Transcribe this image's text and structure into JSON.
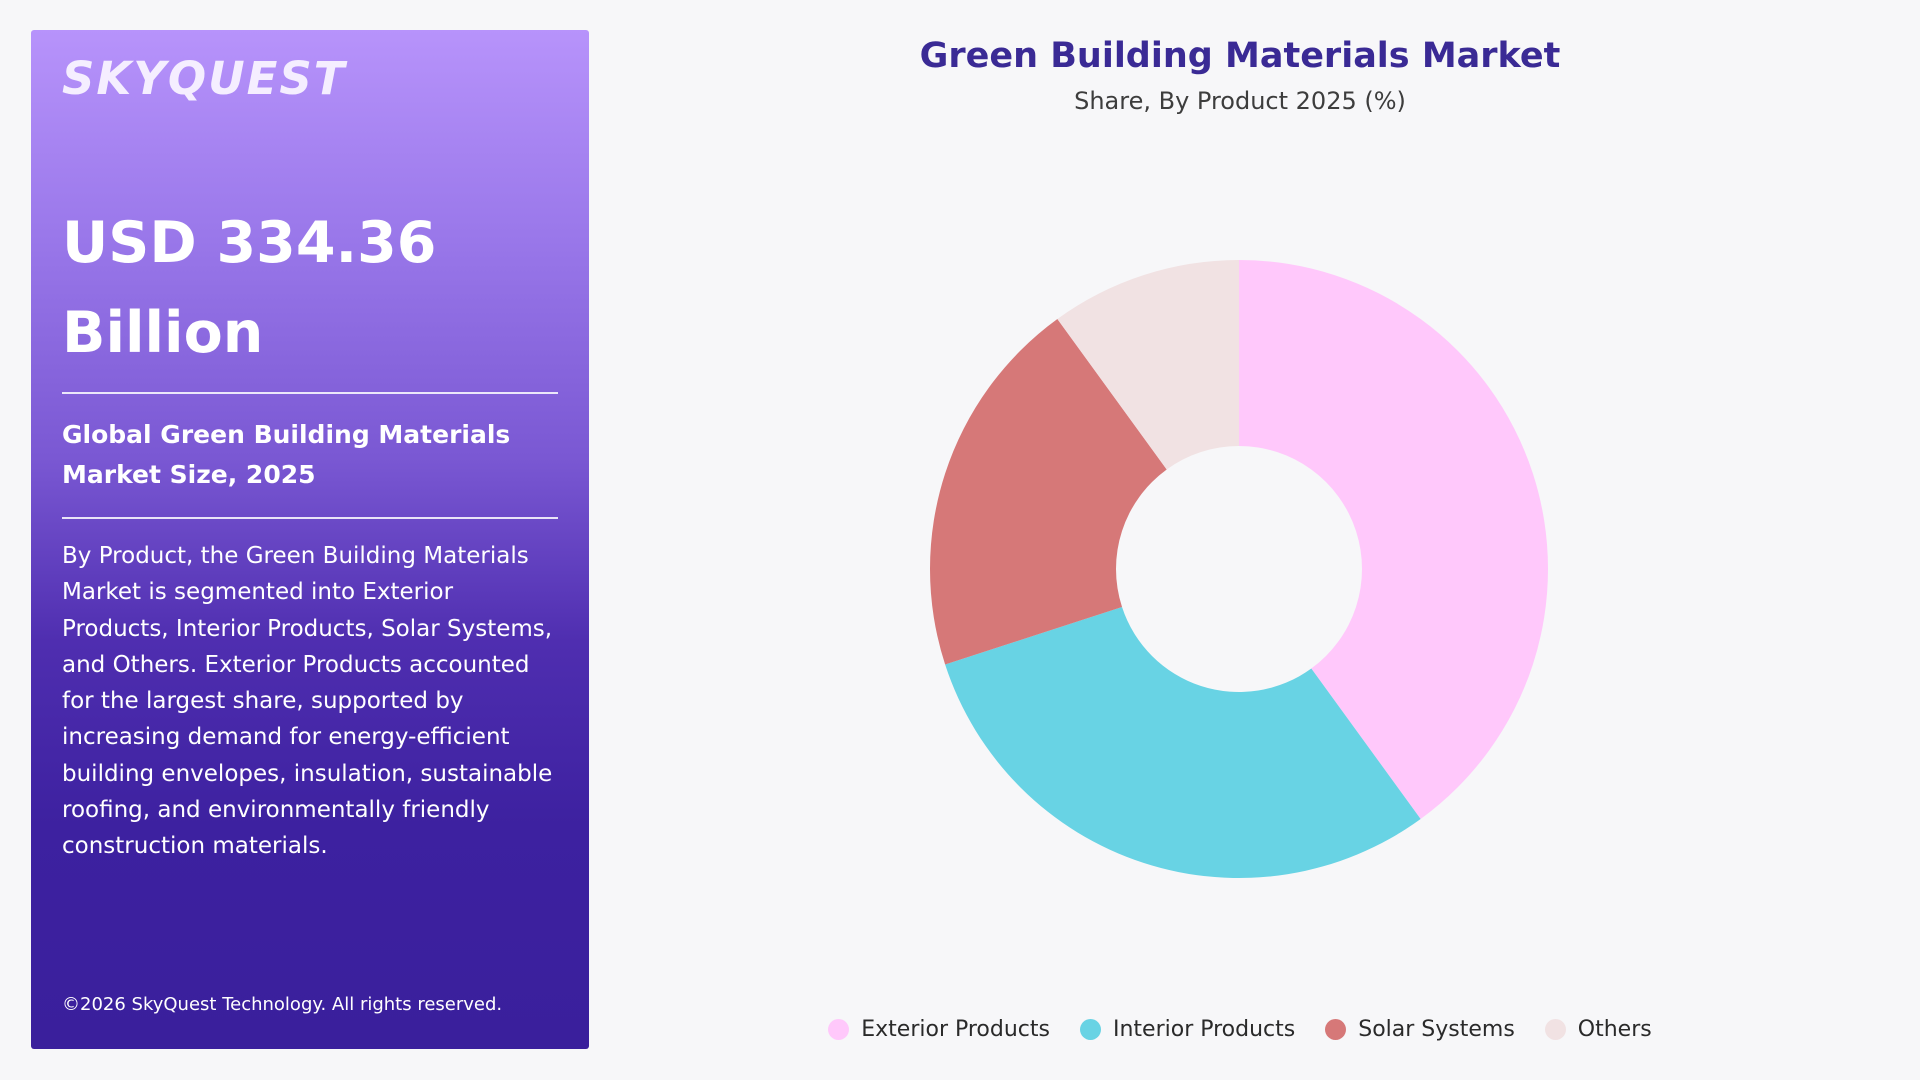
{
  "panel": {
    "logo": "SKYQUEST",
    "headline_line1": "USD 334.36",
    "headline_line2": "Billion",
    "subtitle": "Global Green Building Materials Market Size, 2025",
    "description": "By Product, the Green Building Materials Market is segmented into Exterior Products, Interior Products, Solar Systems, and Others. Exterior Products accounted for the largest share, supported by increasing demand for energy-efficient building envelopes, insulation, sustainable roofing, and environmentally friendly construction materials.",
    "copyright": "©2026 SkyQuest Technology. All rights reserved."
  },
  "colors": {
    "panel_top": "#b793fb",
    "panel_bottom": "#3a1f9c",
    "title": "#3a2a95"
  },
  "chart_data": {
    "type": "pie",
    "variant": "donut",
    "title": "Green Building Materials Market",
    "subtitle": "Share, By Product 2025 (%)",
    "legend_position": "bottom",
    "series": [
      {
        "name": "Exterior Products",
        "value": 40,
        "color": "#ffc8fb"
      },
      {
        "name": "Interior Products",
        "value": 30,
        "color": "#68d3e4"
      },
      {
        "name": "Solar Systems",
        "value": 20,
        "color": "#d67878"
      },
      {
        "name": "Others",
        "value": 10,
        "color": "#f1e2e3"
      }
    ]
  }
}
